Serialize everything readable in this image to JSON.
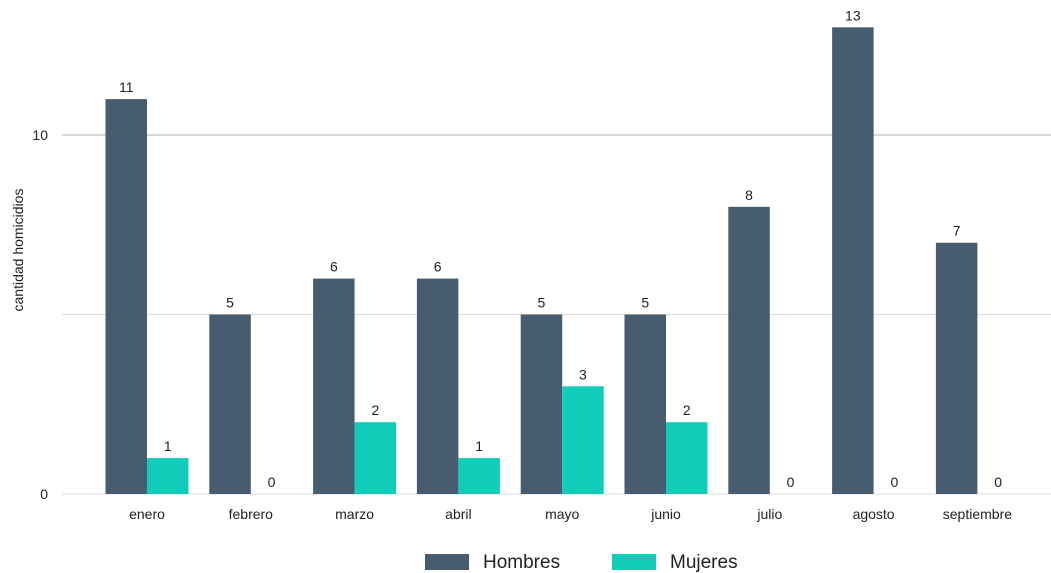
{
  "chart_data": {
    "type": "bar",
    "title": "",
    "ylabel": "cantidad homicidios",
    "xlabel": "",
    "categories": [
      "enero",
      "febrero",
      "marzo",
      "abril",
      "mayo",
      "junio",
      "julio",
      "agosto",
      "septiembre"
    ],
    "series": [
      {
        "name": "Hombres",
        "color": "#475d6f",
        "values": [
          11,
          5,
          6,
          6,
          5,
          5,
          8,
          13,
          7
        ]
      },
      {
        "name": "Mujeres",
        "color": "#11ccb8",
        "values": [
          1,
          0,
          2,
          1,
          3,
          2,
          0,
          0,
          0
        ]
      }
    ],
    "ylim": [
      0,
      13
    ],
    "yticks": [
      0,
      10
    ],
    "grid": true,
    "legend_position": "bottom"
  }
}
